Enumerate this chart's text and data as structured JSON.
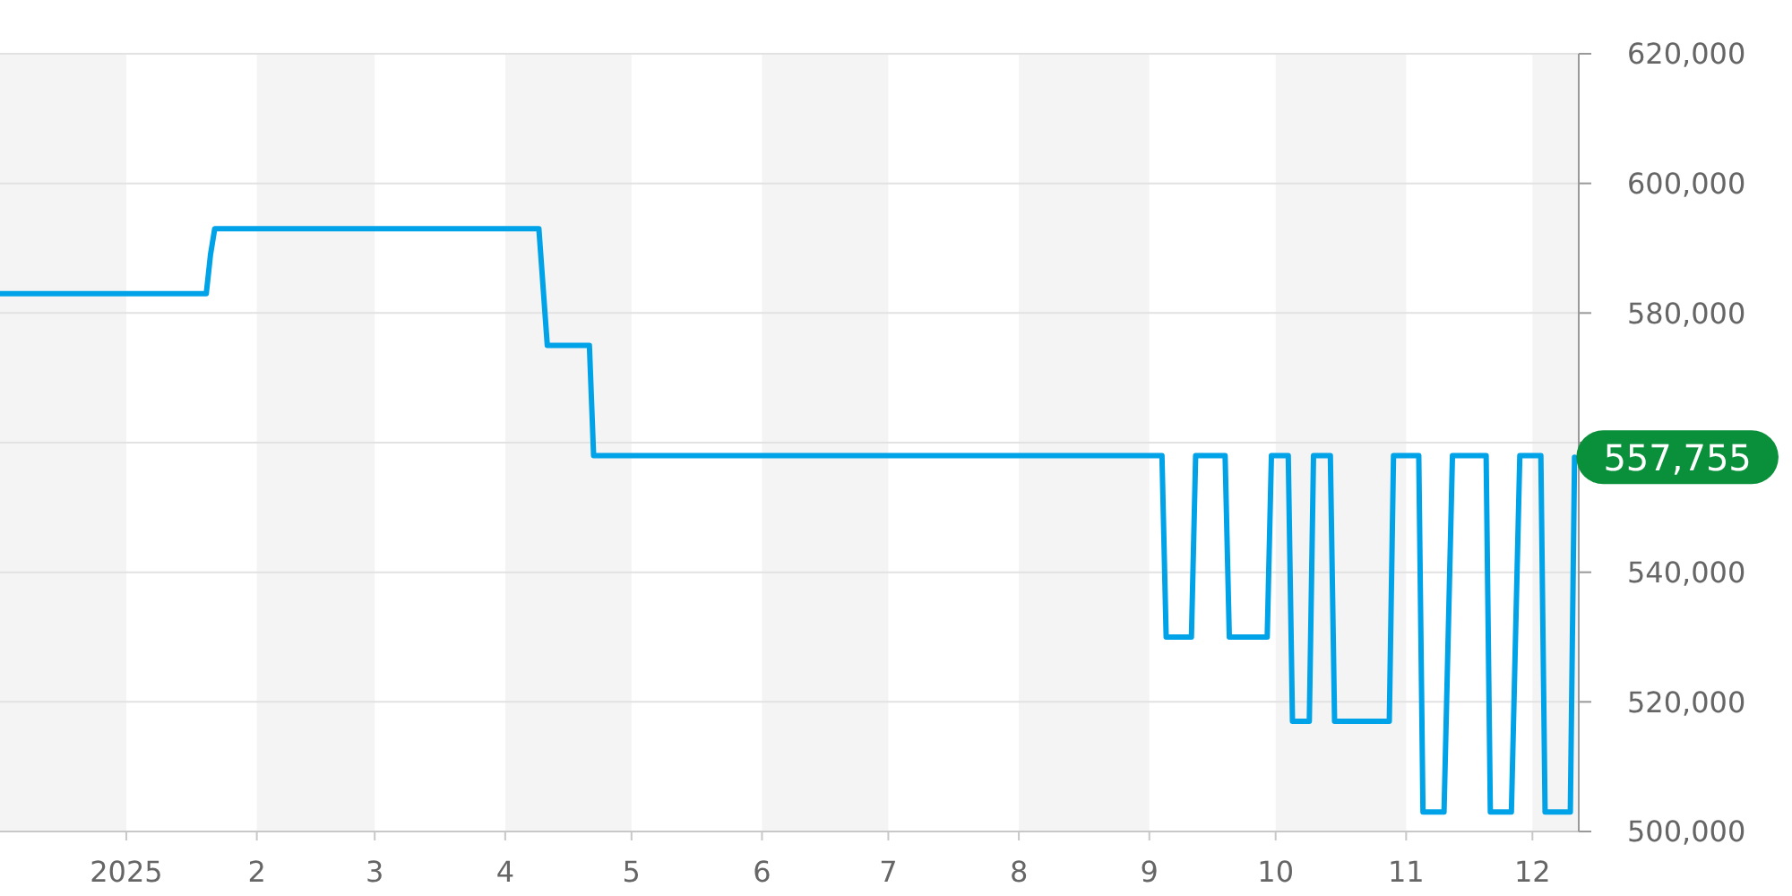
{
  "chart_data": {
    "type": "line",
    "x": [
      "2024-12-02",
      "2025-01-20",
      "2025-01-21",
      "2025-01-22",
      "2025-04-09",
      "2025-04-11",
      "2025-04-21",
      "2025-04-22",
      "2025-09-04",
      "2025-09-05",
      "2025-09-11",
      "2025-09-12",
      "2025-09-19",
      "2025-09-20",
      "2025-09-29",
      "2025-09-30",
      "2025-10-04",
      "2025-10-05",
      "2025-10-09",
      "2025-10-10",
      "2025-10-14",
      "2025-10-15",
      "2025-10-28",
      "2025-10-29",
      "2025-11-04",
      "2025-11-05",
      "2025-11-10",
      "2025-11-12",
      "2025-11-20",
      "2025-11-21",
      "2025-11-26",
      "2025-11-28",
      "2025-12-03",
      "2025-12-04",
      "2025-12-10",
      "2025-12-11"
    ],
    "series": [
      {
        "color": "#00a2e8",
        "values": [
          583000,
          583000,
          589000,
          593000,
          593000,
          575000,
          575000,
          558000,
          558000,
          530000,
          530000,
          558000,
          558000,
          530000,
          530000,
          558000,
          558000,
          517000,
          517000,
          558000,
          558000,
          517000,
          517000,
          558000,
          558000,
          503000,
          503000,
          558000,
          558000,
          503000,
          503000,
          558000,
          558000,
          503000,
          503000,
          557755
        ]
      }
    ],
    "xlim": [
      "2024-12-02",
      "2025-12-12"
    ],
    "xticks": [
      {
        "value": "2025-01-01",
        "label": "2025"
      },
      {
        "value": "2025-02-01",
        "label": "2"
      },
      {
        "value": "2025-03-01",
        "label": "3"
      },
      {
        "value": "2025-04-01",
        "label": "4"
      },
      {
        "value": "2025-05-01",
        "label": "5"
      },
      {
        "value": "2025-06-01",
        "label": "6"
      },
      {
        "value": "2025-07-01",
        "label": "7"
      },
      {
        "value": "2025-08-01",
        "label": "8"
      },
      {
        "value": "2025-09-01",
        "label": "9"
      },
      {
        "value": "2025-10-01",
        "label": "10"
      },
      {
        "value": "2025-11-01",
        "label": "11"
      },
      {
        "value": "2025-12-01",
        "label": "12"
      }
    ],
    "ylim": [
      500000,
      620000
    ],
    "yticks": [
      {
        "value": 500000,
        "label": "500,000"
      },
      {
        "value": 520000,
        "label": "520,000"
      },
      {
        "value": 540000,
        "label": "540,000"
      },
      {
        "value": 560000,
        "label": null
      },
      {
        "value": 580000,
        "label": "580,000"
      },
      {
        "value": 600000,
        "label": "600,000"
      },
      {
        "value": 620000,
        "label": "620,000"
      }
    ],
    "bands": [
      {
        "axis": "x",
        "from": "2024-12-02",
        "to": "2025-01-01",
        "color": "#f4f4f4"
      },
      {
        "axis": "x",
        "from": "2025-02-01",
        "to": "2025-03-01",
        "color": "#f4f4f4"
      },
      {
        "axis": "x",
        "from": "2025-04-01",
        "to": "2025-05-01",
        "color": "#f4f4f4"
      },
      {
        "axis": "x",
        "from": "2025-06-01",
        "to": "2025-07-01",
        "color": "#f4f4f4"
      },
      {
        "axis": "x",
        "from": "2025-08-01",
        "to": "2025-09-01",
        "color": "#f4f4f4"
      },
      {
        "axis": "x",
        "from": "2025-10-01",
        "to": "2025-11-01",
        "color": "#f4f4f4"
      },
      {
        "axis": "x",
        "from": "2025-12-01",
        "to": "2025-12-12",
        "color": "#f4f4f4"
      }
    ],
    "annotations": [
      {
        "text": "557,755",
        "x": "2025-12-11",
        "y": 557755
      }
    ],
    "grid": "y"
  }
}
